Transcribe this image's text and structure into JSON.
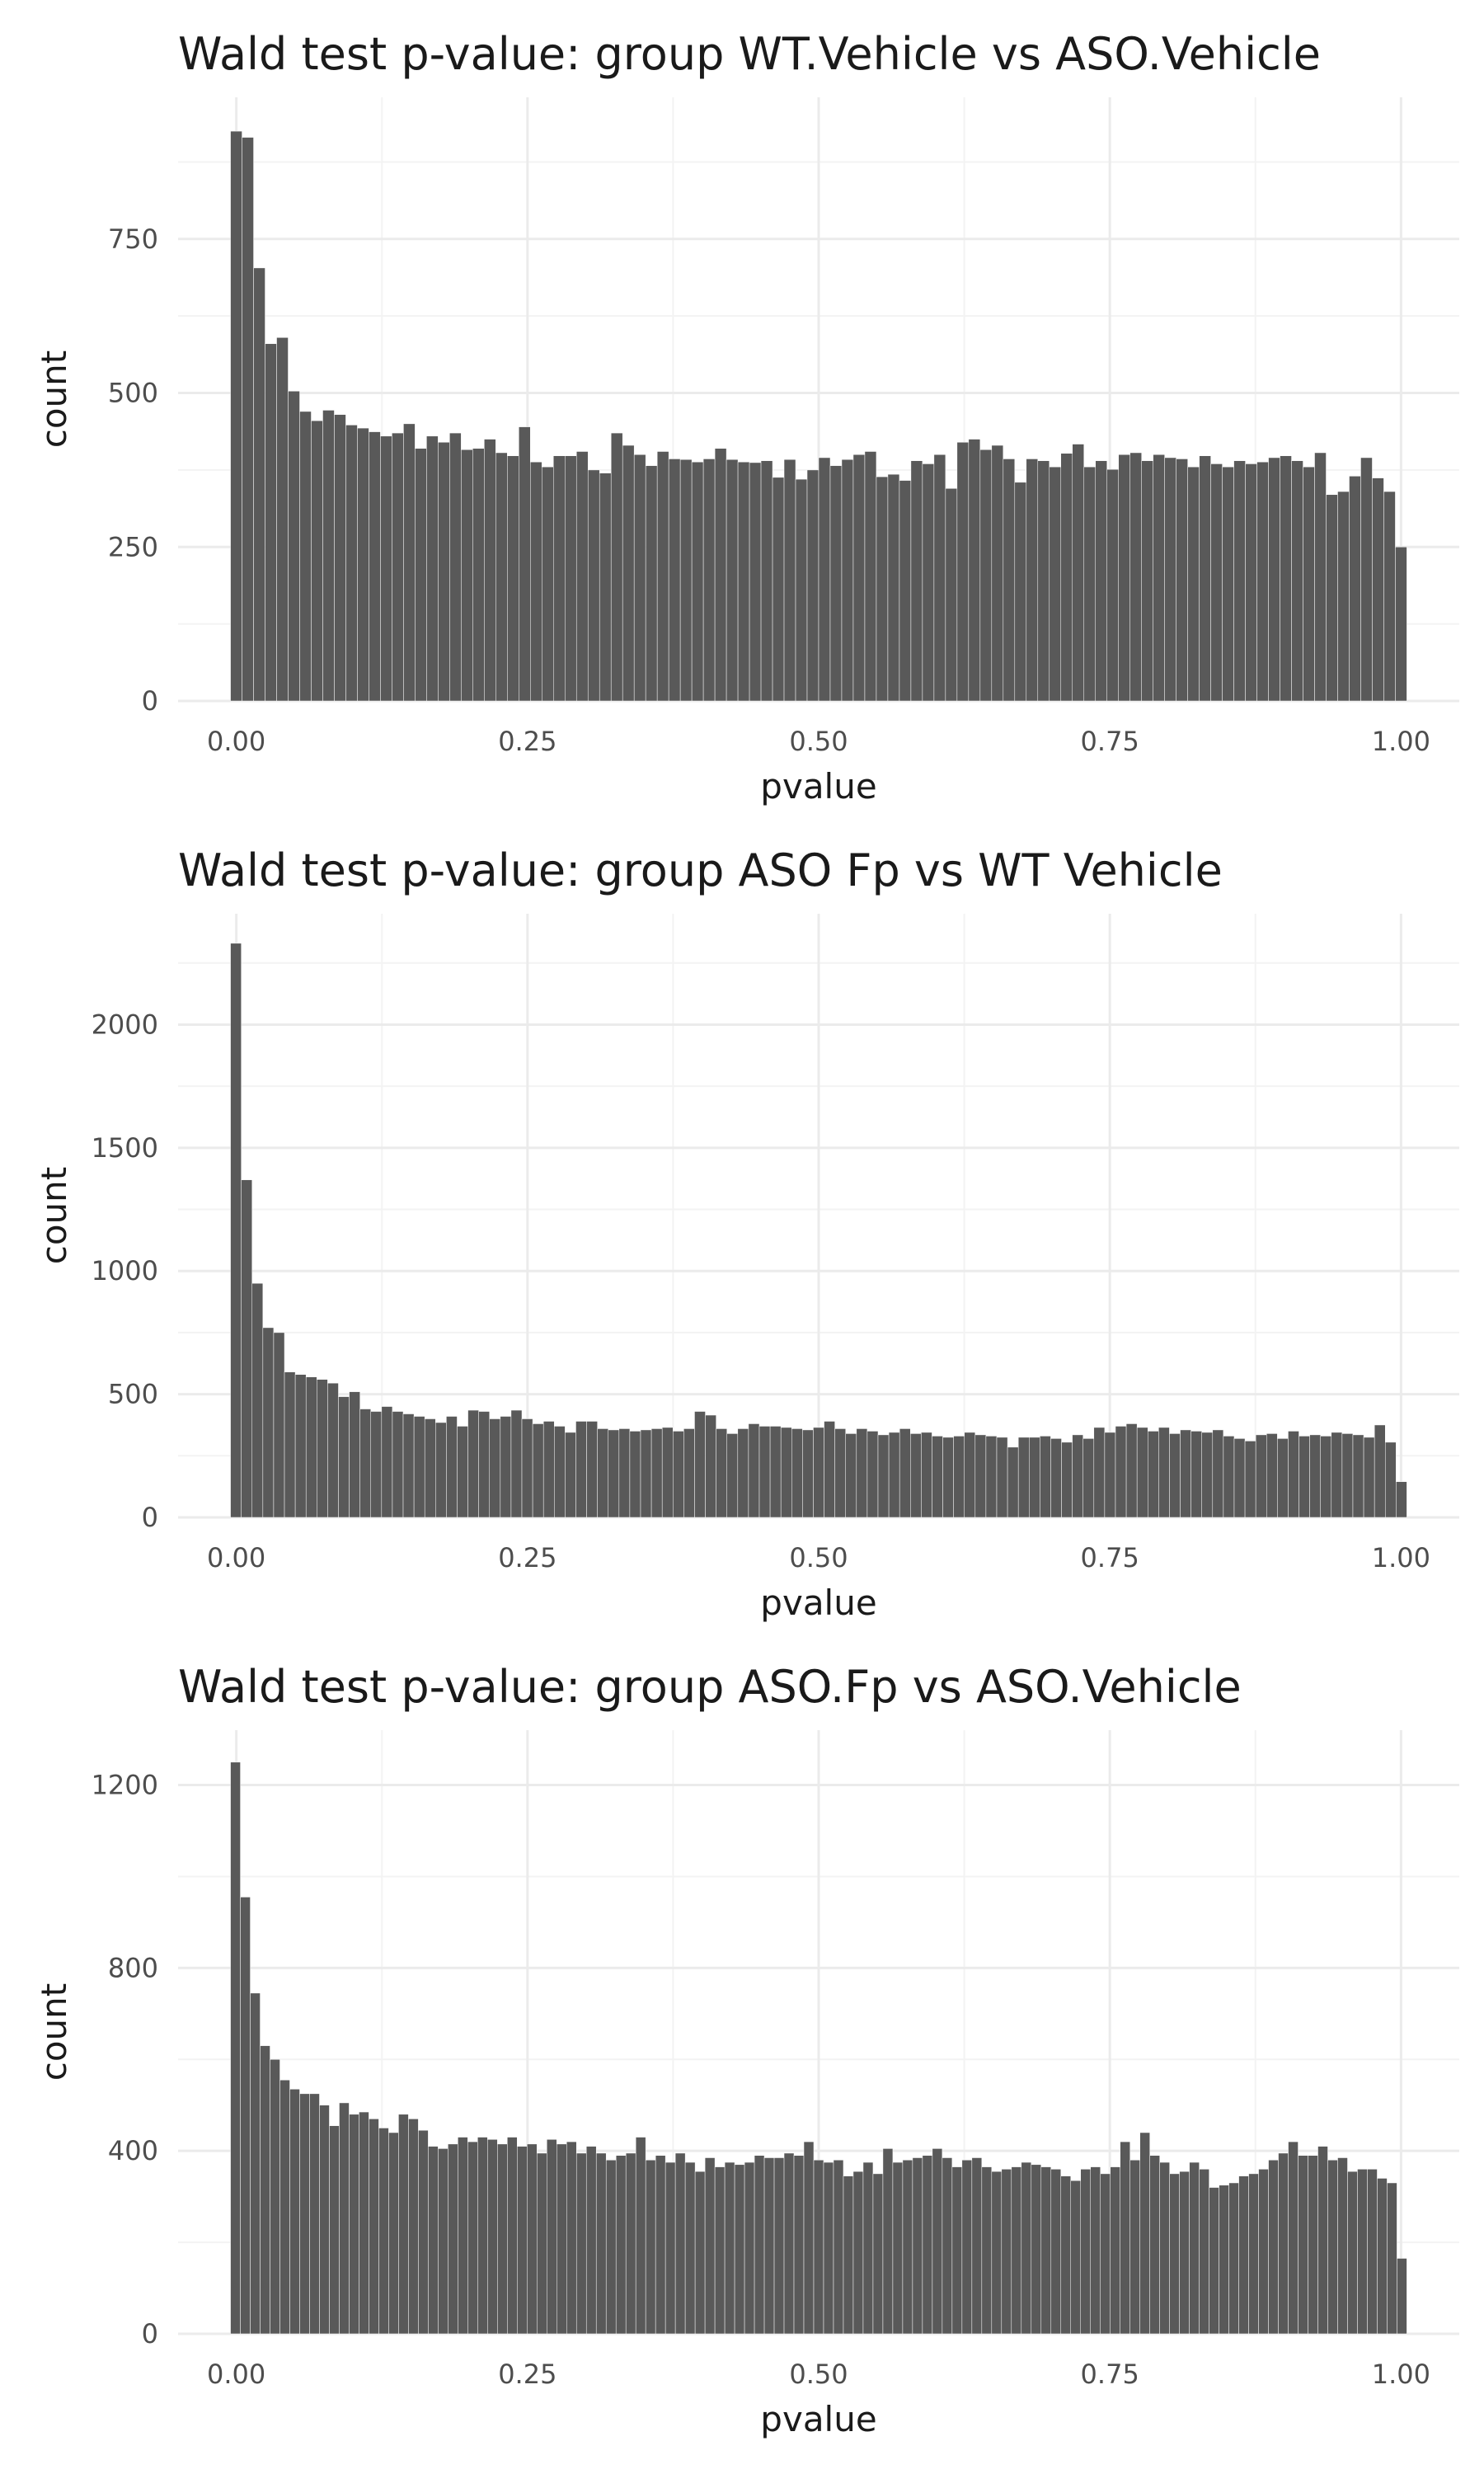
{
  "chart_data": [
    {
      "type": "bar",
      "title": "Wald test p-value: group WT.Vehicle vs ASO.Vehicle",
      "xlabel": "pvalue",
      "ylabel": "count",
      "xlim": [
        -0.05,
        1.05
      ],
      "ylim": [
        0,
        980
      ],
      "xticks": [
        0,
        0.25,
        0.5,
        0.75,
        1.0
      ],
      "xtick_labels": [
        "0.00",
        "0.25",
        "0.50",
        "0.75",
        "1.00"
      ],
      "yticks": [
        0,
        250,
        500,
        750
      ],
      "ytick_labels": [
        "0",
        "250",
        "500",
        "750"
      ],
      "bin_start": 0,
      "bin_width": 0.01,
      "grid": true,
      "values": [
        925,
        915,
        703,
        580,
        590,
        503,
        470,
        455,
        472,
        465,
        448,
        443,
        437,
        430,
        435,
        450,
        410,
        430,
        420,
        435,
        408,
        410,
        425,
        403,
        398,
        445,
        388,
        380,
        398,
        398,
        405,
        375,
        370,
        435,
        415,
        400,
        382,
        405,
        393,
        392,
        388,
        393,
        410,
        392,
        388,
        387,
        390,
        363,
        392,
        360,
        375,
        395,
        382,
        392,
        400,
        405,
        364,
        368,
        358,
        390,
        385,
        400,
        345,
        420,
        425,
        408,
        415,
        393,
        355,
        393,
        390,
        380,
        402,
        417,
        380,
        390,
        376,
        400,
        403,
        390,
        400,
        395,
        393,
        380,
        398,
        385,
        380,
        390,
        385,
        388,
        395,
        398,
        390,
        380,
        403,
        335,
        340,
        365,
        395,
        362,
        340,
        250
      ]
    },
    {
      "type": "bar",
      "title": "Wald test p-value: group ASO Fp vs WT Vehicle",
      "xlabel": "pvalue",
      "ylabel": "count",
      "xlim": [
        -0.05,
        1.05
      ],
      "ylim": [
        0,
        2450
      ],
      "xticks": [
        0,
        0.25,
        0.5,
        0.75,
        1.0
      ],
      "xtick_labels": [
        "0.00",
        "0.25",
        "0.50",
        "0.75",
        "1.00"
      ],
      "yticks": [
        0,
        500,
        1000,
        1500,
        2000
      ],
      "ytick_labels": [
        "0",
        "500",
        "1000",
        "1500",
        "2000"
      ],
      "bin_start": 0,
      "bin_width": 0.01,
      "grid": true,
      "values": [
        2330,
        1370,
        950,
        770,
        750,
        590,
        580,
        570,
        560,
        545,
        490,
        510,
        440,
        430,
        450,
        430,
        420,
        410,
        400,
        385,
        410,
        370,
        435,
        430,
        400,
        410,
        435,
        400,
        380,
        390,
        370,
        345,
        390,
        390,
        360,
        355,
        360,
        350,
        355,
        360,
        365,
        350,
        360,
        430,
        415,
        360,
        340,
        360,
        380,
        370,
        370,
        365,
        360,
        355,
        365,
        390,
        360,
        340,
        360,
        350,
        335,
        345,
        360,
        340,
        345,
        330,
        325,
        330,
        345,
        335,
        330,
        325,
        285,
        325,
        325,
        330,
        320,
        305,
        335,
        320,
        365,
        345,
        370,
        380,
        365,
        350,
        365,
        340,
        355,
        350,
        345,
        355,
        330,
        320,
        310,
        335,
        340,
        320,
        350,
        330,
        335,
        330,
        345,
        340,
        335,
        325,
        375,
        305,
        145
      ]
    },
    {
      "type": "bar",
      "title": "Wald test p-value: group ASO.Fp vs ASO.Vehicle",
      "xlabel": "pvalue",
      "ylabel": "count",
      "xlim": [
        -0.05,
        1.05
      ],
      "ylim": [
        0,
        1320
      ],
      "xticks": [
        0,
        0.25,
        0.5,
        0.75,
        1.0
      ],
      "xtick_labels": [
        "0.00",
        "0.25",
        "0.50",
        "0.75",
        "1.00"
      ],
      "yticks": [
        0,
        400,
        800,
        1200
      ],
      "ytick_labels": [
        "0",
        "400",
        "800",
        "1200"
      ],
      "bin_start": 0,
      "bin_width": 0.01,
      "grid": true,
      "values": [
        1250,
        955,
        745,
        630,
        600,
        555,
        535,
        525,
        525,
        500,
        455,
        505,
        480,
        485,
        470,
        450,
        440,
        480,
        470,
        445,
        410,
        405,
        415,
        430,
        420,
        430,
        425,
        415,
        430,
        410,
        415,
        395,
        425,
        415,
        420,
        395,
        410,
        395,
        380,
        390,
        395,
        430,
        380,
        390,
        375,
        395,
        375,
        355,
        385,
        365,
        375,
        370,
        375,
        390,
        385,
        385,
        395,
        390,
        420,
        380,
        375,
        380,
        345,
        355,
        375,
        350,
        405,
        375,
        380,
        385,
        390,
        405,
        385,
        365,
        380,
        385,
        365,
        355,
        360,
        365,
        375,
        370,
        365,
        360,
        345,
        335,
        360,
        365,
        350,
        365,
        420,
        380,
        440,
        390,
        375,
        350,
        355,
        375,
        360,
        320,
        325,
        330,
        345,
        350,
        360,
        380,
        395,
        420,
        390,
        390,
        410,
        380,
        385,
        355,
        360,
        360,
        340,
        330,
        165
      ]
    }
  ]
}
